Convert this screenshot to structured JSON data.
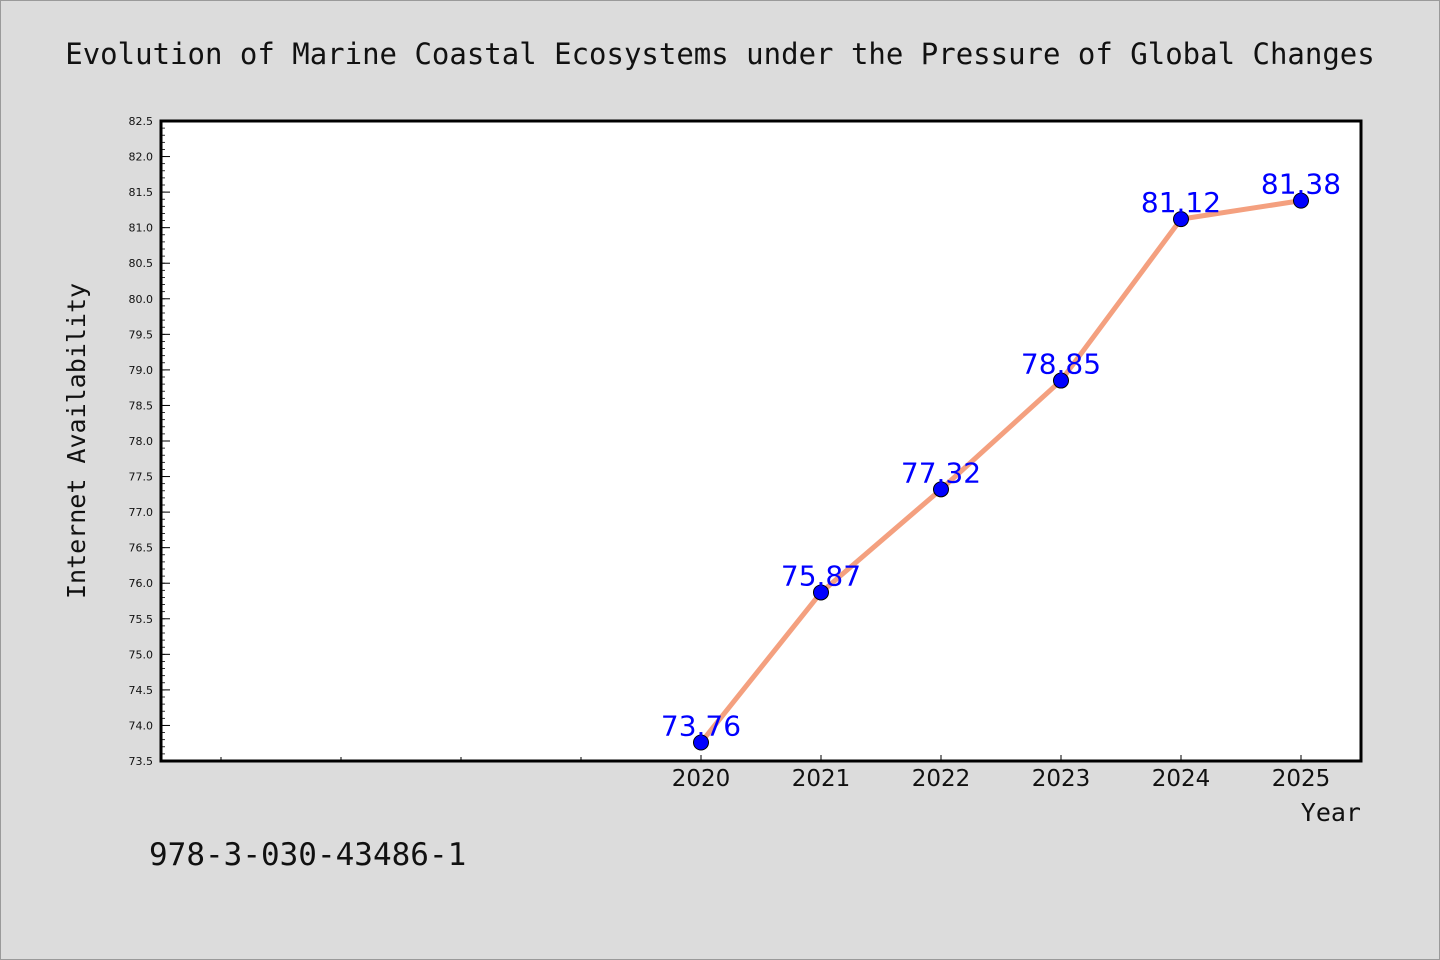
{
  "chart_data": {
    "type": "line",
    "title": "Evolution of Marine Coastal Ecosystems under the Pressure of Global Changes",
    "xlabel": "Year",
    "ylabel": "Internet Availability",
    "ylim": [
      73.5,
      82.5
    ],
    "y_ticks": [
      "73.5",
      "74.0",
      "74.5",
      "75.0",
      "75.5",
      "76.0",
      "76.5",
      "77.0",
      "77.5",
      "78.0",
      "78.5",
      "79.0",
      "79.5",
      "80.0",
      "80.5",
      "81.0",
      "81.5",
      "82.0",
      "82.5"
    ],
    "categories": [
      "2020",
      "2021",
      "2022",
      "2023",
      "2024",
      "2025"
    ],
    "series": [
      {
        "values": [
          73.76,
          75.87,
          77.32,
          78.85,
          81.12,
          81.38
        ]
      }
    ],
    "data_labels": [
      "73.76",
      "75.87",
      "77.32",
      "78.85",
      "81.12",
      "81.38"
    ],
    "grid": false,
    "colors": {
      "line": "#f4a07f",
      "marker": "#0000ff",
      "label": "#0000ff",
      "background": "#dcdcdc",
      "plot_background": "#ffffff"
    }
  },
  "footer": {
    "code": "978-3-030-43486-1"
  }
}
